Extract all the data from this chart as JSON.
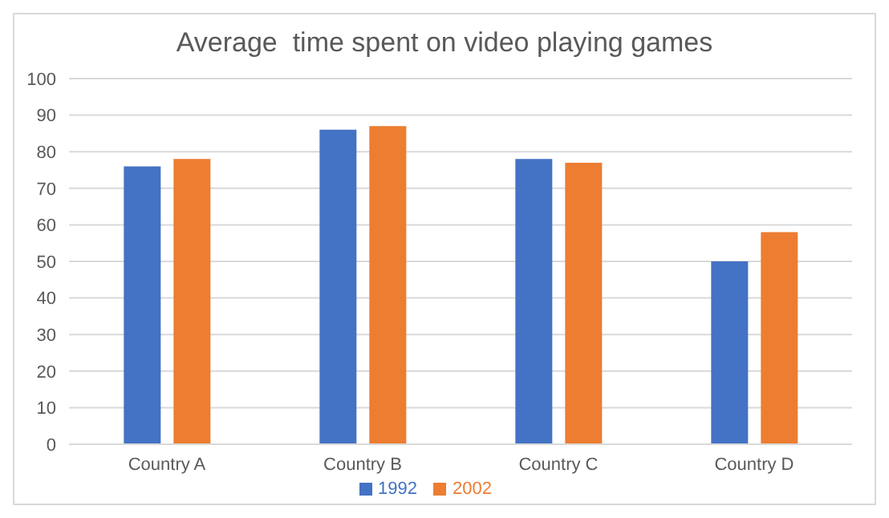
{
  "chart_data": {
    "type": "bar",
    "title": "Average  time spent on video playing games",
    "categories": [
      "Country A",
      "Country B",
      "Country C",
      "Country D"
    ],
    "series": [
      {
        "name": "1992",
        "color": "#4472c4",
        "values": [
          76,
          86,
          78,
          50
        ]
      },
      {
        "name": "2002",
        "color": "#ed7d31",
        "values": [
          78,
          87,
          77,
          58
        ]
      }
    ],
    "ylim": [
      0,
      100
    ],
    "yticks": [
      0,
      10,
      20,
      30,
      40,
      50,
      60,
      70,
      80,
      90,
      100
    ],
    "grid": "y",
    "legend": "bottom"
  }
}
